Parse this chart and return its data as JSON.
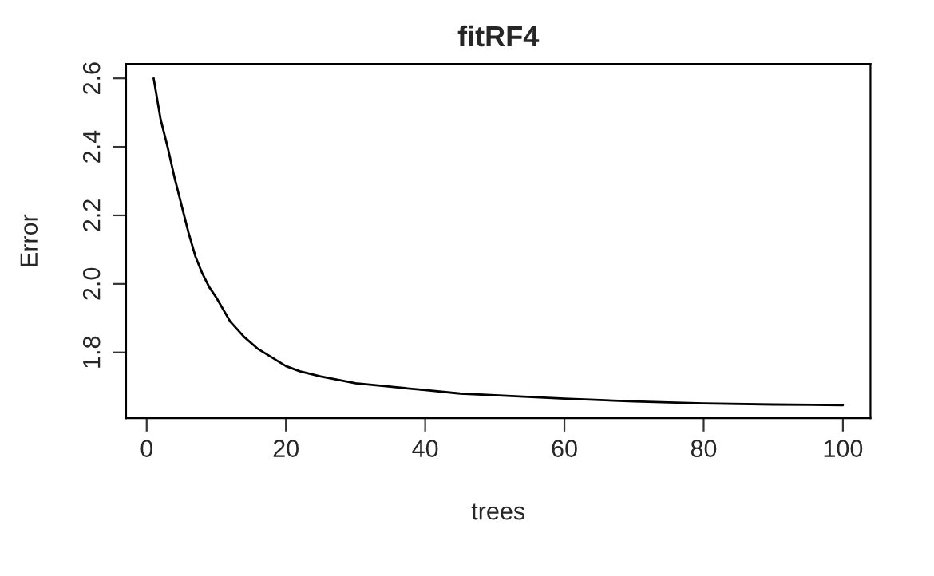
{
  "chart_data": {
    "type": "line",
    "title": "fitRF4",
    "xlabel": "trees",
    "ylabel": "Error",
    "x": [
      1,
      2,
      3,
      4,
      5,
      6,
      7,
      8,
      9,
      10,
      12,
      14,
      16,
      18,
      20,
      22,
      25,
      30,
      35,
      40,
      45,
      50,
      60,
      70,
      80,
      90,
      100
    ],
    "series": [
      {
        "color": "#000000",
        "values": [
          2.6,
          2.48,
          2.4,
          2.31,
          2.23,
          2.15,
          2.08,
          2.03,
          1.99,
          1.96,
          1.89,
          1.845,
          1.81,
          1.785,
          1.76,
          1.745,
          1.73,
          1.71,
          1.7,
          1.69,
          1.68,
          1.675,
          1.665,
          1.657,
          1.651,
          1.648,
          1.646
        ]
      }
    ],
    "xlim": [
      -2.96,
      103.96
    ],
    "ylim": [
      1.608,
      2.642
    ],
    "xticks": [
      0,
      20,
      40,
      60,
      80,
      100
    ],
    "yticks": [
      1.8,
      {
        "value": 2.0,
        "label": "2.0"
      },
      2.2,
      2.4,
      2.6
    ],
    "grid": false,
    "marker": "none",
    "line_style": "solid"
  }
}
